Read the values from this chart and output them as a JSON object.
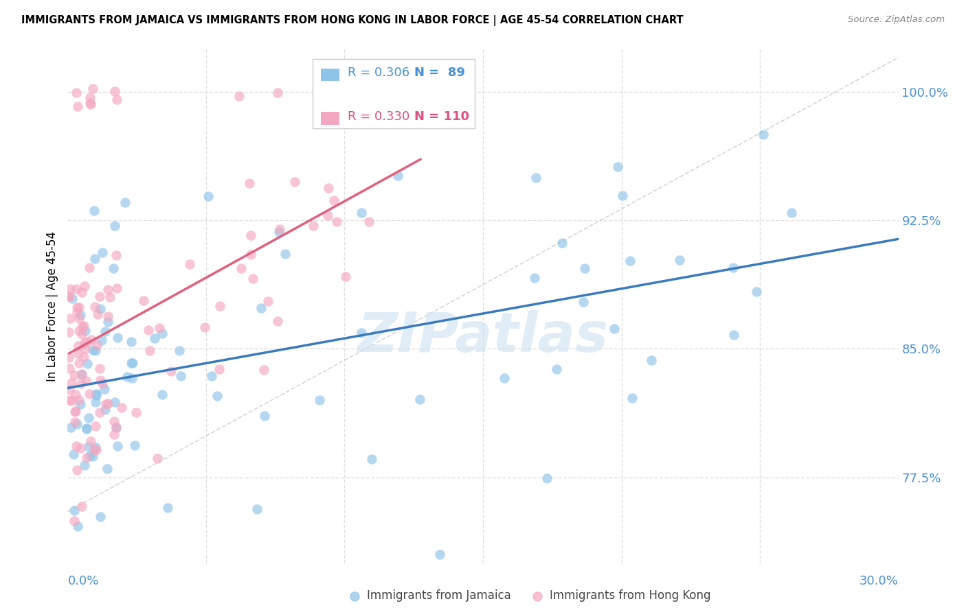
{
  "title": "IMMIGRANTS FROM JAMAICA VS IMMIGRANTS FROM HONG KONG IN LABOR FORCE | AGE 45-54 CORRELATION CHART",
  "source": "Source: ZipAtlas.com",
  "ylabel": "In Labor Force | Age 45-54",
  "ytick_labels": [
    "100.0%",
    "92.5%",
    "85.0%",
    "77.5%"
  ],
  "ytick_values": [
    1.0,
    0.925,
    0.85,
    0.775
  ],
  "xlim": [
    0.0,
    0.3
  ],
  "ylim": [
    0.725,
    1.025
  ],
  "legend_r_jamaica": "R = 0.306",
  "legend_n_jamaica": "N =  89",
  "legend_r_hongkong": "R = 0.330",
  "legend_n_hongkong": "N = 110",
  "color_jamaica": "#8ec4e8",
  "color_hongkong": "#f4a7c0",
  "color_jamaica_line": "#3a7abf",
  "color_hongkong_line": "#e0607e",
  "color_text_blue": "#4a90d9",
  "color_text_pink": "#e05080",
  "watermark": "ZIPatlas",
  "grid_color": "#e0e0e0",
  "background_color": "#ffffff"
}
